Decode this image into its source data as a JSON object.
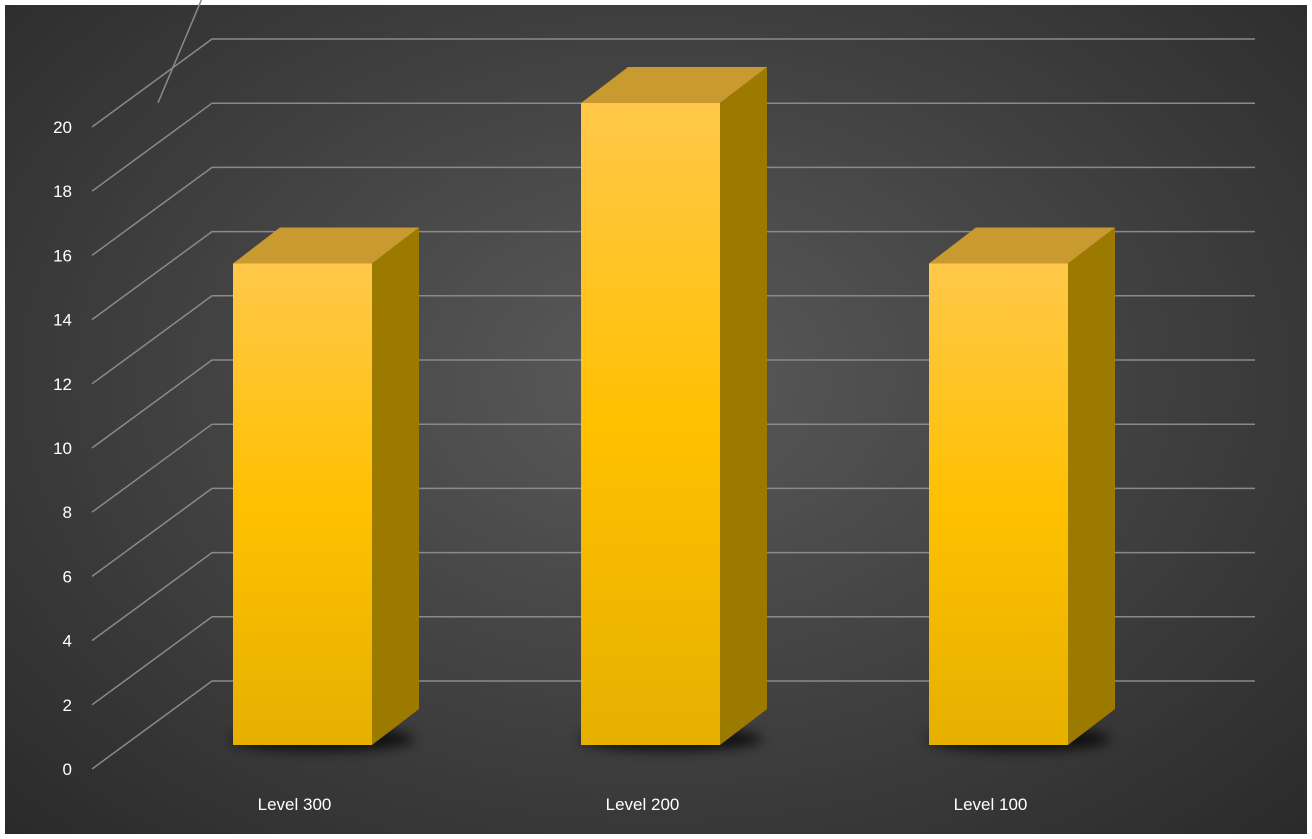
{
  "chart_data": {
    "type": "bar",
    "title": "",
    "xlabel": "",
    "ylabel": "",
    "categories": [
      "Level 300",
      "Level 200",
      "Level 100"
    ],
    "values": [
      15,
      20,
      15
    ],
    "ylim": [
      0,
      22
    ],
    "yticks": [
      "0",
      "2",
      "4",
      "6",
      "8",
      "10",
      "12",
      "14",
      "16",
      "18",
      "20"
    ],
    "grid": true,
    "style": "3d-column",
    "colors": {
      "bar_front": "#ffc000",
      "bar_top": "#c99a30",
      "bar_side": "#9c7a00",
      "background": "#404040",
      "gridline": "#8a8a8a",
      "text": "#ffffff"
    }
  }
}
